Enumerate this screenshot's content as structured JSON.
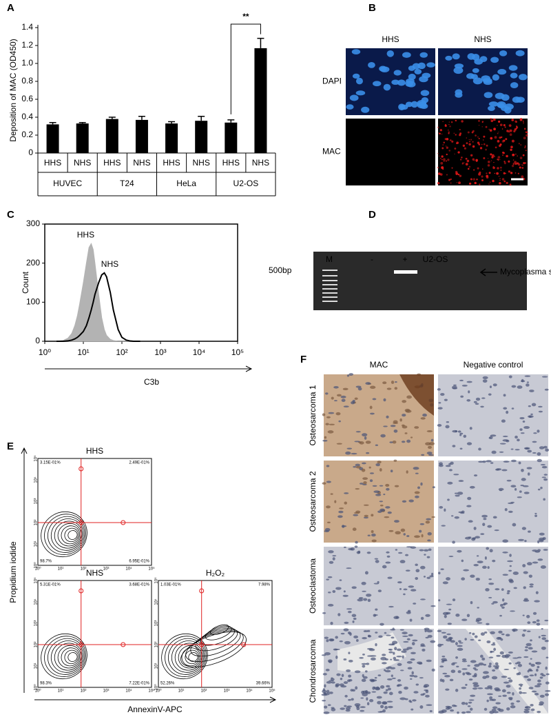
{
  "panel_labels": [
    "A",
    "B",
    "C",
    "D",
    "E",
    "F"
  ],
  "chart_data": [
    {
      "type": "bar",
      "y_label": "Deposition of MAC (OD450)",
      "categories": [
        "HHS",
        "NHS",
        "HHS",
        "NHS",
        "HHS",
        "NHS",
        "HHS",
        "NHS"
      ],
      "groups": [
        "HUVEC",
        "T24",
        "HeLa",
        "U2-OS"
      ],
      "values": [
        0.32,
        0.33,
        0.38,
        0.37,
        0.33,
        0.36,
        0.34,
        1.17
      ],
      "errors": [
        0.02,
        0.01,
        0.02,
        0.04,
        0.02,
        0.05,
        0.03,
        0.11
      ],
      "color": "#000000",
      "ylim": [
        0,
        1.4
      ],
      "yticks": [
        0,
        0.2,
        0.4,
        0.6,
        0.8,
        {
          "value": 1,
          "label": "1.0"
        },
        1.2,
        1.4
      ],
      "annotation": "**"
    },
    {
      "type": "line",
      "x_label": "C3b",
      "y_label": "Count",
      "log_x": true,
      "x": [
        2,
        3,
        4,
        5,
        6,
        7,
        8,
        10,
        12,
        14,
        16,
        18,
        20,
        25,
        30,
        35,
        40,
        50,
        60,
        80,
        100,
        130,
        160,
        200,
        300
      ],
      "series": [
        {
          "name": "HHS",
          "color": "#b3b3b3",
          "values": [
            0,
            2,
            8,
            20,
            40,
            65,
            95,
            150,
            200,
            240,
            250,
            235,
            200,
            120,
            60,
            30,
            15,
            5,
            2,
            0,
            0,
            0,
            0,
            0,
            0
          ]
        },
        {
          "name": "NHS",
          "color": "#000000",
          "values": [
            0,
            0,
            1,
            3,
            6,
            10,
            15,
            25,
            40,
            60,
            80,
            100,
            120,
            150,
            170,
            175,
            165,
            125,
            80,
            30,
            10,
            3,
            1,
            0,
            0
          ]
        }
      ],
      "xlim": [
        1,
        100000
      ],
      "xticks": [
        {
          "value": 1,
          "label": "10⁰"
        },
        {
          "value": 10,
          "label": "10¹"
        },
        {
          "value": 100,
          "label": "10²"
        },
        {
          "value": 1000,
          "label": "10³"
        },
        {
          "value": 10000,
          "label": "10⁴"
        },
        {
          "value": 100000,
          "label": "10⁵"
        }
      ],
      "ylim": [
        0,
        300
      ],
      "yticks": [
        0,
        100,
        200,
        300
      ]
    }
  ],
  "panel_b": {
    "columns": [
      "HHS",
      "NHS"
    ],
    "rows": [
      "DAPI",
      "MAC"
    ]
  },
  "panel_d": {
    "lanes": [
      "M",
      "-",
      "+",
      "U2-OS"
    ],
    "marker": "500bp",
    "band_label": "Mycoplasma spp."
  },
  "panel_e": {
    "y_label": "Propidium iodide",
    "x_label": "AnnexinV-APC",
    "ticks": [
      "10⁰",
      "10¹",
      "10²",
      "10³",
      "10⁴",
      "10⁵"
    ],
    "plots": [
      {
        "title": "HHS",
        "quadrants": [
          "3.15E-01%",
          "2.49E-01%",
          "98.7%",
          "6.95E-01%"
        ]
      },
      {
        "title": "NHS",
        "quadrants": [
          "5.31E-01%",
          "3.68E-01%",
          "98.3%",
          "7.22E-01%"
        ]
      },
      {
        "title": "H₂O₂",
        "quadrants": [
          "1.03E-01%",
          "7.98%",
          "52.26%",
          "39.66%"
        ]
      }
    ]
  },
  "panel_f": {
    "columns": [
      "MAC",
      "Negative control"
    ],
    "rows": [
      "Osteosarcoma 1",
      "Osteosarcoma 2",
      "Osteoclastoma",
      "Chondrosarcoma"
    ]
  }
}
